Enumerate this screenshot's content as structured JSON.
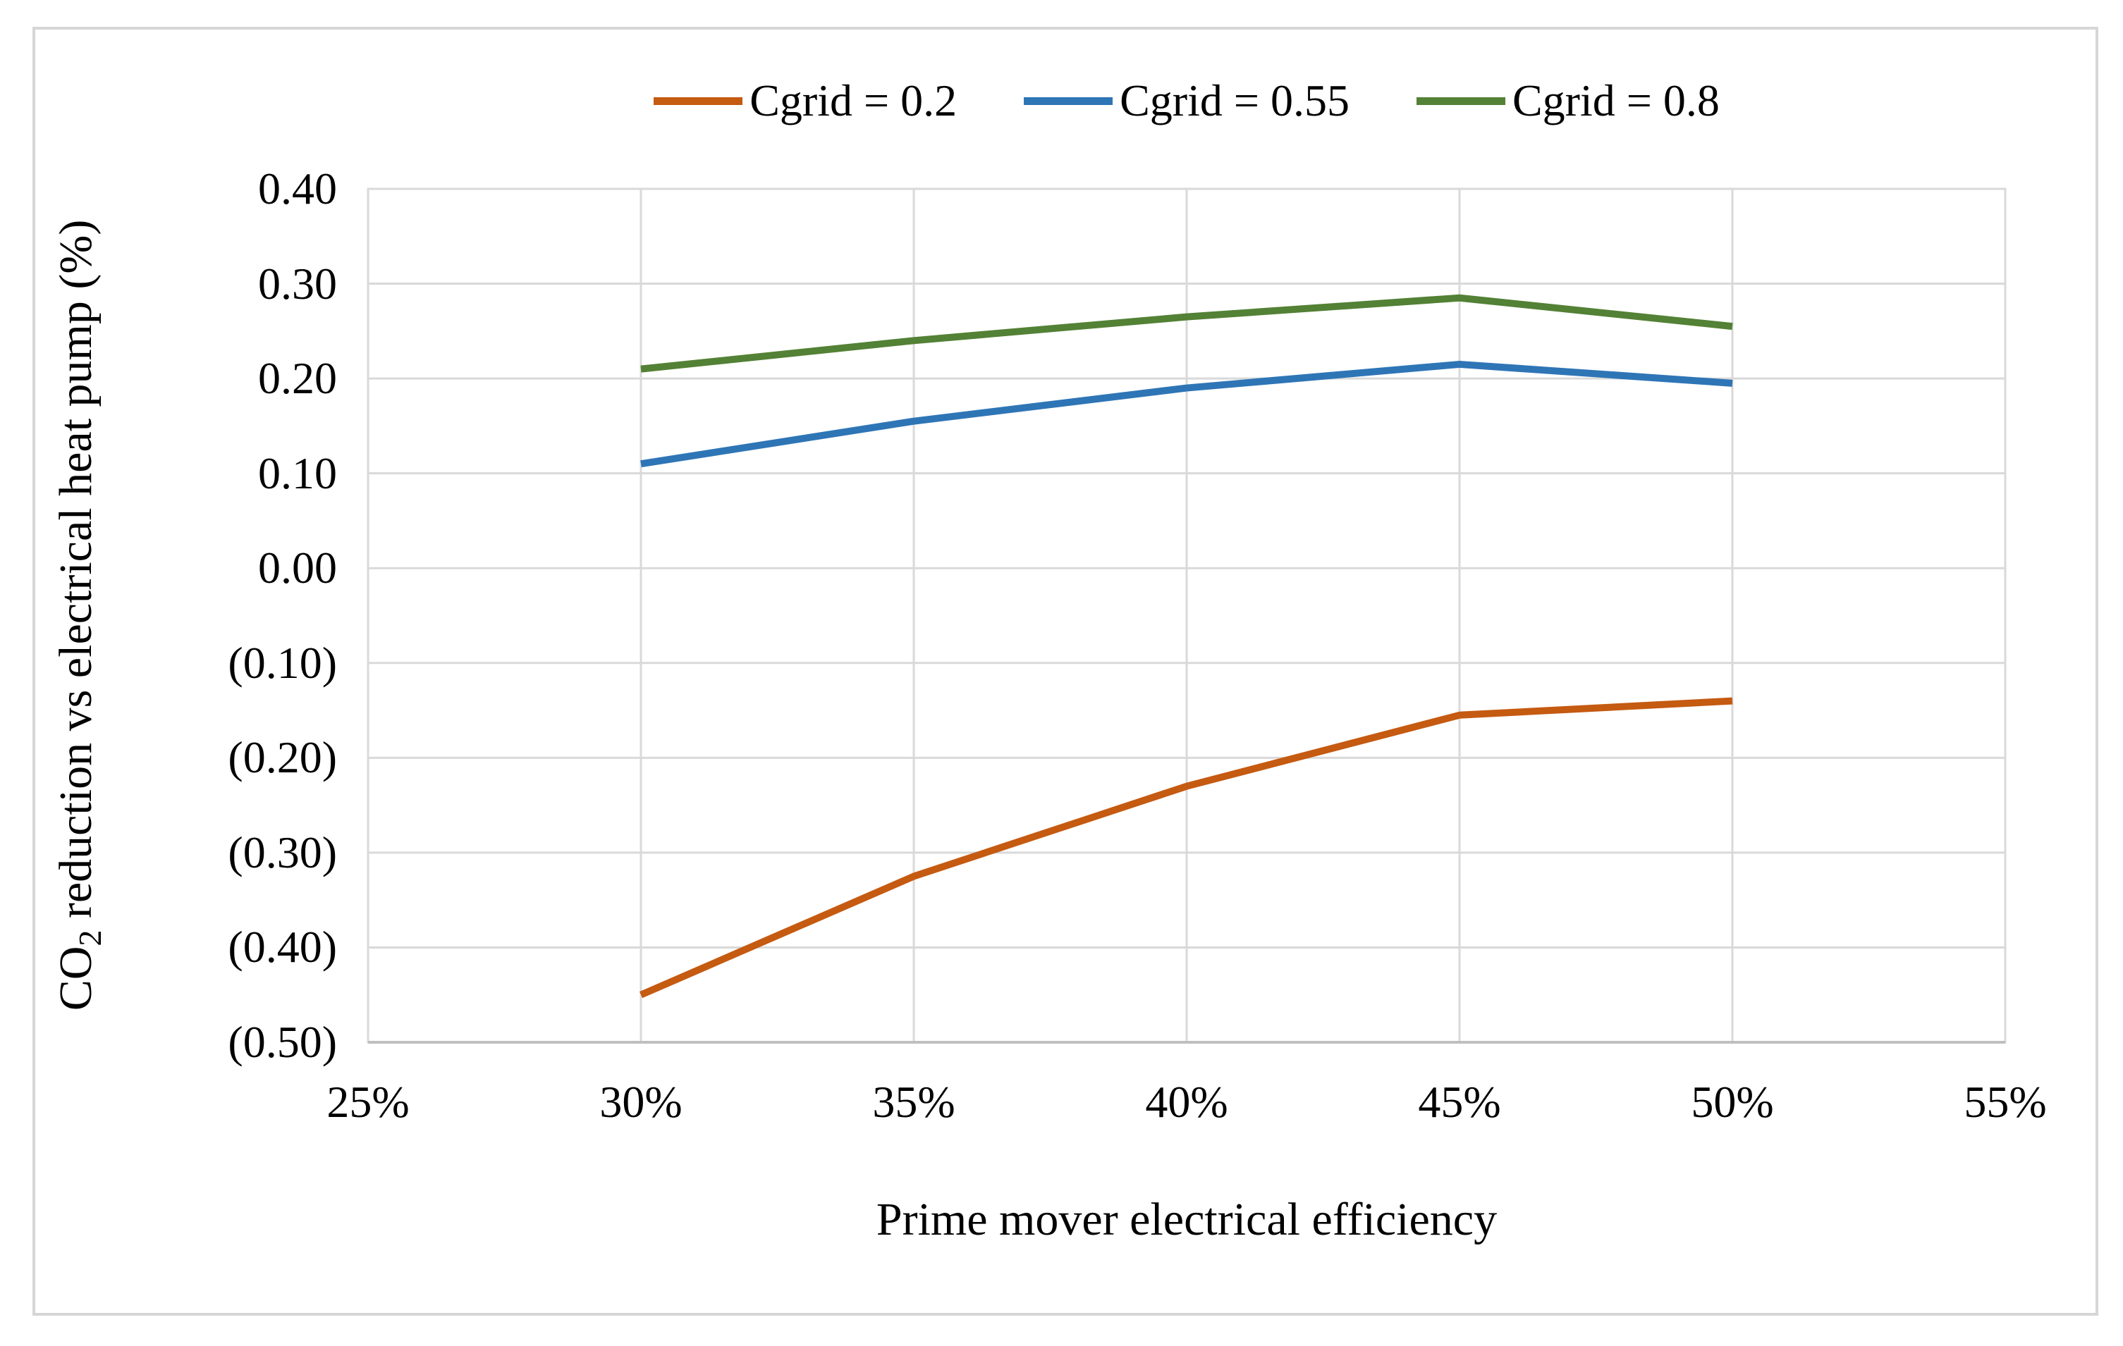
{
  "figure": {
    "background_color": "#FFFFFF",
    "frame_border_color": "#D6D6D6",
    "gridline_color": "#D9D9D9",
    "axis_line_color": "#BFBFBF"
  },
  "chart_data": {
    "type": "line",
    "x": [
      0.3,
      0.35,
      0.4,
      0.45,
      0.5
    ],
    "series": [
      {
        "name": "Cgrid = 0.2",
        "color": "#C55A11",
        "values": [
          -0.45,
          -0.325,
          -0.23,
          -0.155,
          -0.14
        ]
      },
      {
        "name": "Cgrid = 0.55",
        "color": "#2E75B6",
        "values": [
          0.11,
          0.155,
          0.19,
          0.215,
          0.195
        ]
      },
      {
        "name": "Cgrid = 0.8",
        "color": "#538135",
        "values": [
          0.21,
          0.24,
          0.265,
          0.285,
          0.255
        ]
      }
    ],
    "xlabel": "Prime mover electrical efficiency",
    "ylabel_prefix": "CO",
    "ylabel_sub": "2",
    "ylabel_suffix": " reduction vs electrical heat pump (%)",
    "xlim": [
      0.25,
      0.55
    ],
    "ylim": [
      -0.5,
      0.4
    ],
    "x_ticks": [
      0.25,
      0.3,
      0.35,
      0.4,
      0.45,
      0.5,
      0.55
    ],
    "x_tick_labels": [
      "25%",
      "30%",
      "35%",
      "40%",
      "45%",
      "50%",
      "55%"
    ],
    "y_ticks": [
      0.4,
      0.3,
      0.2,
      0.1,
      0.0,
      -0.1,
      -0.2,
      -0.3,
      -0.4,
      -0.5
    ],
    "y_tick_labels": [
      "0.40",
      "0.30",
      "0.20",
      "0.10",
      "0.00",
      "(0.10)",
      "(0.20)",
      "(0.30)",
      "(0.40)",
      "(0.50)"
    ],
    "grid": true,
    "legend_position": "top"
  }
}
